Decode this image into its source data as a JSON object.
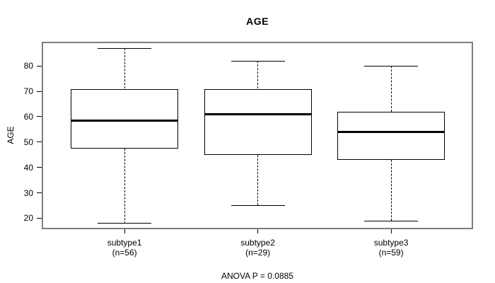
{
  "chart_data": {
    "type": "boxplot",
    "title": "AGE",
    "ylabel": "AGE",
    "footer": "ANOVA P = 0.0885",
    "groups": [
      {
        "label": "subtype1",
        "sublabel": "(n=56)",
        "n": 56,
        "whisker_low": 18,
        "q1": 47.5,
        "median": 58.5,
        "q3": 71,
        "whisker_high": 87
      },
      {
        "label": "subtype2",
        "sublabel": "(n=29)",
        "n": 29,
        "whisker_low": 25,
        "q1": 45,
        "median": 61,
        "q3": 71,
        "whisker_high": 82
      },
      {
        "label": "subtype3",
        "sublabel": "(n=59)",
        "n": 59,
        "whisker_low": 19,
        "q1": 43,
        "median": 54,
        "q3": 62,
        "whisker_high": 80
      }
    ],
    "y_axis": {
      "ticks": [
        20,
        30,
        40,
        50,
        60,
        70,
        80
      ],
      "min": 15.8,
      "max": 89.4
    },
    "x_axis": {
      "center_fractions": [
        0.192,
        0.501,
        0.81
      ]
    },
    "grid": false,
    "legend": "none",
    "colors": {
      "box_border": "#000000",
      "median": "#000000",
      "whisker": "#000000",
      "plot_border": "#7d7d7d",
      "background": "#ffffff",
      "text": "#000000"
    }
  }
}
